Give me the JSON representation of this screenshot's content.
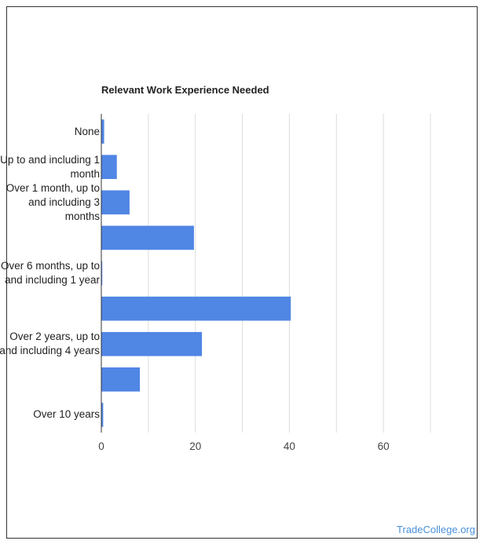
{
  "chart_data": {
    "type": "bar",
    "orientation": "horizontal",
    "title": "Relevant Work Experience Needed",
    "xlabel": "",
    "ylabel": "",
    "xlim": [
      0,
      70
    ],
    "xticks": [
      0,
      20,
      40,
      60
    ],
    "grid": true,
    "legend": "none",
    "bar_color": "#5086e4",
    "categories": [
      "None",
      "Up to and including 1 month",
      "Over 1 month, up to and including 3 months",
      "",
      "Over 6 months, up to and including 1 year",
      "",
      "Over 2 years, up to and including 4 years",
      "",
      "Over 10 years"
    ],
    "values": [
      0.6,
      3.3,
      6.0,
      19.7,
      0.2,
      40.3,
      21.4,
      8.2,
      0.4
    ]
  },
  "footer": {
    "watermark": "TradeCollege.org"
  }
}
